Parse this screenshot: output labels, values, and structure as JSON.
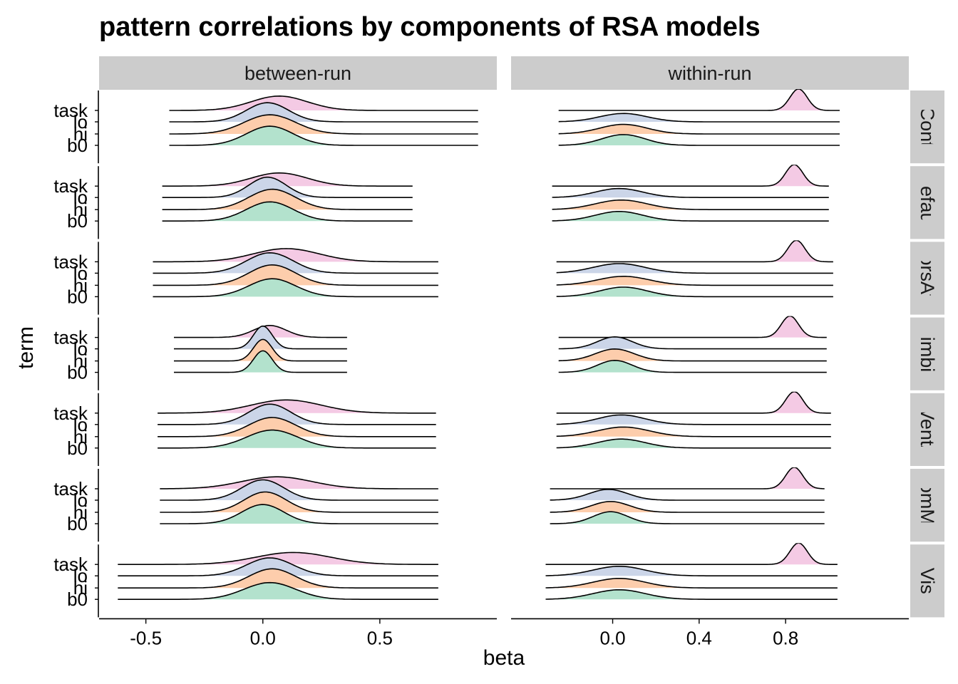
{
  "chart_data": {
    "type": "ridgeline",
    "title": "pattern correlations by components of RSA models",
    "xlabel": "beta",
    "ylabel": "term",
    "terms": [
      "b0",
      "hi",
      "lo",
      "task"
    ],
    "term_colors": {
      "b0": "#b3e2cd",
      "hi": "#fdcdac",
      "lo": "#cbd5e8",
      "task": "#f4cae4"
    },
    "columns": [
      {
        "label": "between-run",
        "xlim": [
          -0.7,
          1.0
        ],
        "ticks": [
          -0.5,
          0.0,
          0.5
        ],
        "tick_labels": [
          "-0.5",
          "0.0",
          "0.5"
        ]
      },
      {
        "label": "within-run",
        "xlim": [
          -0.47,
          1.37
        ],
        "ticks": [
          0.0,
          0.4,
          0.8
        ],
        "tick_labels": [
          "0.0",
          "0.4",
          "0.8"
        ]
      }
    ],
    "rows": [
      {
        "label": "Cont",
        "between": {
          "range": [
            -0.4,
            0.92
          ],
          "b0": {
            "mean": 0.03,
            "sd": 0.1,
            "height": 1.6
          },
          "hi": {
            "mean": 0.03,
            "sd": 0.11,
            "height": 1.6
          },
          "lo": {
            "mean": 0.02,
            "sd": 0.09,
            "height": 1.6
          },
          "task": {
            "mean": 0.07,
            "sd": 0.12,
            "height": 1.2
          }
        },
        "within": {
          "range": [
            -0.25,
            1.05
          ],
          "b0": {
            "mean": 0.05,
            "sd": 0.1,
            "height": 0.9
          },
          "hi": {
            "mean": 0.05,
            "sd": 0.11,
            "height": 0.8
          },
          "lo": {
            "mean": 0.05,
            "sd": 0.11,
            "height": 0.7
          },
          "task": {
            "mean": 0.86,
            "sd": 0.04,
            "height": 1.8
          }
        }
      },
      {
        "label": "Default",
        "between": {
          "range": [
            -0.43,
            0.64
          ],
          "b0": {
            "mean": 0.03,
            "sd": 0.1,
            "height": 1.6
          },
          "hi": {
            "mean": 0.04,
            "sd": 0.1,
            "height": 1.7
          },
          "lo": {
            "mean": 0.02,
            "sd": 0.08,
            "height": 1.7
          },
          "task": {
            "mean": 0.07,
            "sd": 0.12,
            "height": 1.1
          }
        },
        "within": {
          "range": [
            -0.28,
            1.0
          ],
          "b0": {
            "mean": 0.03,
            "sd": 0.11,
            "height": 0.8
          },
          "hi": {
            "mean": 0.04,
            "sd": 0.12,
            "height": 0.8
          },
          "lo": {
            "mean": 0.03,
            "sd": 0.11,
            "height": 0.75
          },
          "task": {
            "mean": 0.84,
            "sd": 0.04,
            "height": 1.8
          }
        }
      },
      {
        "label": "DorsAttn",
        "between": {
          "range": [
            -0.47,
            0.75
          ],
          "b0": {
            "mean": 0.04,
            "sd": 0.1,
            "height": 1.5
          },
          "hi": {
            "mean": 0.04,
            "sd": 0.1,
            "height": 1.7
          },
          "lo": {
            "mean": 0.03,
            "sd": 0.1,
            "height": 1.7
          },
          "task": {
            "mean": 0.1,
            "sd": 0.14,
            "height": 1.1
          }
        },
        "within": {
          "range": [
            -0.26,
            1.02
          ],
          "b0": {
            "mean": 0.05,
            "sd": 0.11,
            "height": 0.8
          },
          "hi": {
            "mean": 0.05,
            "sd": 0.12,
            "height": 0.75
          },
          "lo": {
            "mean": 0.03,
            "sd": 0.12,
            "height": 0.8
          },
          "task": {
            "mean": 0.85,
            "sd": 0.04,
            "height": 1.8
          }
        }
      },
      {
        "label": "Limbic",
        "between": {
          "range": [
            -0.38,
            0.36
          ],
          "b0": {
            "mean": 0.0,
            "sd": 0.04,
            "height": 1.8
          },
          "hi": {
            "mean": 0.0,
            "sd": 0.04,
            "height": 1.8
          },
          "lo": {
            "mean": 0.0,
            "sd": 0.04,
            "height": 1.9
          },
          "task": {
            "mean": 0.03,
            "sd": 0.07,
            "height": 1.0
          }
        },
        "within": {
          "range": [
            -0.25,
            0.99
          ],
          "b0": {
            "mean": 0.01,
            "sd": 0.08,
            "height": 1.0
          },
          "hi": {
            "mean": 0.01,
            "sd": 0.09,
            "height": 1.0
          },
          "lo": {
            "mean": 0.01,
            "sd": 0.08,
            "height": 1.0
          },
          "task": {
            "mean": 0.82,
            "sd": 0.04,
            "height": 1.8
          }
        }
      },
      {
        "label": "SalVentAttn",
        "between": {
          "range": [
            -0.45,
            0.74
          ],
          "b0": {
            "mean": 0.04,
            "sd": 0.11,
            "height": 1.5
          },
          "hi": {
            "mean": 0.04,
            "sd": 0.1,
            "height": 1.6
          },
          "lo": {
            "mean": 0.03,
            "sd": 0.09,
            "height": 1.7
          },
          "task": {
            "mean": 0.1,
            "sd": 0.15,
            "height": 1.1
          }
        },
        "within": {
          "range": [
            -0.26,
            1.01
          ],
          "b0": {
            "mean": 0.04,
            "sd": 0.11,
            "height": 0.75
          },
          "hi": {
            "mean": 0.05,
            "sd": 0.12,
            "height": 0.8
          },
          "lo": {
            "mean": 0.04,
            "sd": 0.11,
            "height": 0.8
          },
          "task": {
            "mean": 0.84,
            "sd": 0.04,
            "height": 1.8
          }
        }
      },
      {
        "label": "SomMot",
        "between": {
          "range": [
            -0.44,
            0.75
          ],
          "b0": {
            "mean": 0.0,
            "sd": 0.09,
            "height": 1.6
          },
          "hi": {
            "mean": 0.01,
            "sd": 0.09,
            "height": 1.7
          },
          "lo": {
            "mean": 0.0,
            "sd": 0.09,
            "height": 1.7
          },
          "task": {
            "mean": 0.06,
            "sd": 0.15,
            "height": 1.0
          }
        },
        "within": {
          "range": [
            -0.29,
            0.98
          ],
          "b0": {
            "mean": -0.01,
            "sd": 0.08,
            "height": 1.0
          },
          "hi": {
            "mean": -0.01,
            "sd": 0.09,
            "height": 0.9
          },
          "lo": {
            "mean": -0.02,
            "sd": 0.09,
            "height": 0.9
          },
          "task": {
            "mean": 0.84,
            "sd": 0.04,
            "height": 1.8
          }
        }
      },
      {
        "label": "Vis",
        "between": {
          "range": [
            -0.62,
            0.75
          ],
          "b0": {
            "mean": 0.03,
            "sd": 0.11,
            "height": 1.4
          },
          "hi": {
            "mean": 0.04,
            "sd": 0.1,
            "height": 1.6
          },
          "lo": {
            "mean": 0.03,
            "sd": 0.1,
            "height": 1.5
          },
          "task": {
            "mean": 0.13,
            "sd": 0.16,
            "height": 1.0
          }
        },
        "within": {
          "range": [
            -0.31,
            1.04
          ],
          "b0": {
            "mean": 0.03,
            "sd": 0.12,
            "height": 0.8
          },
          "hi": {
            "mean": 0.03,
            "sd": 0.12,
            "height": 0.8
          },
          "lo": {
            "mean": 0.03,
            "sd": 0.12,
            "height": 0.8
          },
          "task": {
            "mean": 0.86,
            "sd": 0.04,
            "height": 1.8
          }
        }
      }
    ]
  }
}
